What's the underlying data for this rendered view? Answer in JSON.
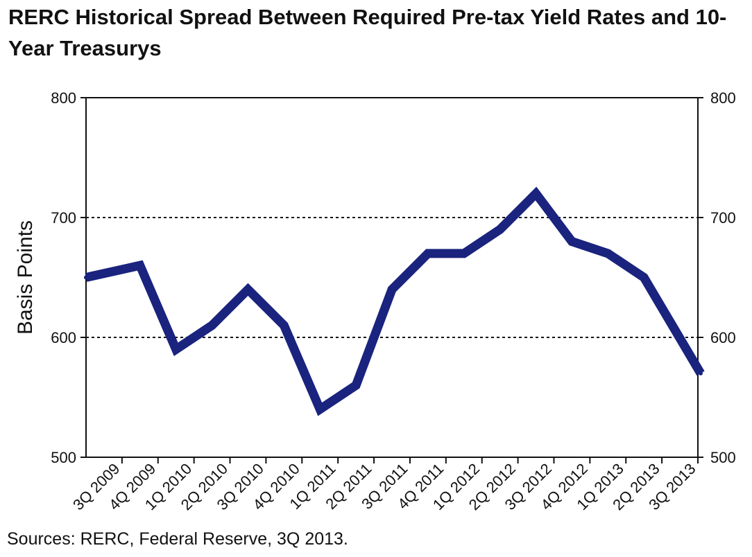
{
  "chart_data": {
    "type": "line",
    "title": "RERC Historical Spread Between Required Pre-tax Yield Rates and 10-Year Treasurys",
    "ylabel": "Basis Points",
    "xlabel": "",
    "ylim": [
      500,
      800
    ],
    "yticks": [
      "500",
      "600",
      "700",
      "800"
    ],
    "y2ticks": [
      "500",
      "600",
      "700",
      "800"
    ],
    "grid": {
      "horizontal_dotted_at": [
        600,
        700
      ]
    },
    "line_color": "#1a237e",
    "categories": [
      "3Q 2009",
      "4Q 2009",
      "1Q 2010",
      "2Q 2010",
      "3Q 2010",
      "4Q 2010",
      "1Q 2011",
      "2Q 2011",
      "3Q 2011",
      "4Q 2011",
      "1Q 2012",
      "2Q 2012",
      "3Q 2012",
      "4Q 2012",
      "1Q 2013",
      "2Q 2013",
      "3Q 2013"
    ],
    "values": [
      650,
      660,
      590,
      610,
      640,
      610,
      540,
      560,
      640,
      670,
      670,
      690,
      720,
      680,
      670,
      650,
      570
    ]
  },
  "source": "Sources: RERC, Federal Reserve, 3Q 2013."
}
